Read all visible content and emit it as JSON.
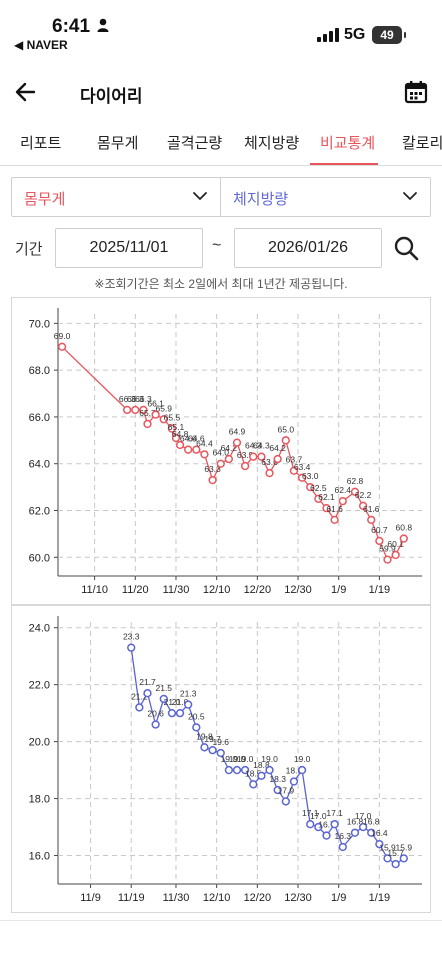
{
  "status_bar": {
    "time": "6:41",
    "back_app": "◀ NAVER",
    "network": "5G",
    "battery": "49"
  },
  "header": {
    "title": "다이어리",
    "back_icon": "arrow-left-icon",
    "calendar_icon": "calendar-icon"
  },
  "tabs": [
    {
      "label": "리포트",
      "active": false
    },
    {
      "label": "몸무게",
      "active": false
    },
    {
      "label": "골격근량",
      "active": false
    },
    {
      "label": "체지방량",
      "active": false
    },
    {
      "label": "비교통계",
      "active": true
    },
    {
      "label": "칼로리",
      "active": false
    }
  ],
  "selectors": {
    "left": "몸무게",
    "right": "체지방량"
  },
  "period": {
    "label": "기간",
    "from": "2025/11/01",
    "separator": "~",
    "to": "2026/01/26",
    "search_icon": "search-icon"
  },
  "notice": "※조회기간은 최소 2일에서 최대 1년간 제공됩니다.",
  "colors": {
    "accent": "#e8555c",
    "weight": "#e8555c",
    "fat": "#5a64d2"
  },
  "chart_data": [
    {
      "type": "line",
      "series": [
        {
          "name": "몸무게",
          "color": "#e8555c"
        }
      ],
      "ylim": [
        59.2,
        70.4
      ],
      "yticks": [
        "70.0",
        "68.0",
        "66.0",
        "64.0",
        "62.0",
        "60.0"
      ],
      "xtick_labels": [
        "11/10",
        "11/20",
        "11/30",
        "12/10",
        "12/20",
        "12/30",
        "1/9",
        "1/19"
      ],
      "grid": true,
      "points": [
        {
          "x": "2025-11-02",
          "y": 69.0,
          "label": "69.0"
        },
        {
          "x": "2025-11-18",
          "y": 66.3,
          "label": "66.3"
        },
        {
          "x": "2025-11-20",
          "y": 66.3,
          "label": "66.3"
        },
        {
          "x": "2025-11-22",
          "y": 66.3,
          "label": "66.3"
        },
        {
          "x": "2025-11-23",
          "y": 65.7,
          "label": "65.7"
        },
        {
          "x": "2025-11-25",
          "y": 66.1,
          "label": "66.1"
        },
        {
          "x": "2025-11-27",
          "y": 65.9,
          "label": "65.9"
        },
        {
          "x": "2025-11-29",
          "y": 65.5,
          "label": "65.5"
        },
        {
          "x": "2025-11-30",
          "y": 65.1,
          "label": "65.1"
        },
        {
          "x": "2025-12-01",
          "y": 64.8,
          "label": "64.8"
        },
        {
          "x": "2025-12-03",
          "y": 64.6,
          "label": "64.6"
        },
        {
          "x": "2025-12-05",
          "y": 64.6,
          "label": "64.6"
        },
        {
          "x": "2025-12-07",
          "y": 64.4,
          "label": "64.4"
        },
        {
          "x": "2025-12-09",
          "y": 63.3,
          "label": "63.3"
        },
        {
          "x": "2025-12-11",
          "y": 64.0,
          "label": "64.0"
        },
        {
          "x": "2025-12-13",
          "y": 64.2,
          "label": "64.2"
        },
        {
          "x": "2025-12-15",
          "y": 64.9,
          "label": "64.9"
        },
        {
          "x": "2025-12-17",
          "y": 63.9,
          "label": "63.9"
        },
        {
          "x": "2025-12-19",
          "y": 64.3,
          "label": "64.3"
        },
        {
          "x": "2025-12-21",
          "y": 64.3,
          "label": "64.3"
        },
        {
          "x": "2025-12-23",
          "y": 63.6,
          "label": "63.6"
        },
        {
          "x": "2025-12-25",
          "y": 64.2,
          "label": "64.2"
        },
        {
          "x": "2025-12-27",
          "y": 65.0,
          "label": "65.0"
        },
        {
          "x": "2025-12-29",
          "y": 63.7,
          "label": "63.7"
        },
        {
          "x": "2025-12-31",
          "y": 63.4,
          "label": "63.4"
        },
        {
          "x": "2026-01-02",
          "y": 63.0,
          "label": "63.0"
        },
        {
          "x": "2026-01-04",
          "y": 62.5,
          "label": "62.5"
        },
        {
          "x": "2026-01-06",
          "y": 62.1,
          "label": "62.1"
        },
        {
          "x": "2026-01-08",
          "y": 61.6,
          "label": "61.6"
        },
        {
          "x": "2026-01-10",
          "y": 62.4,
          "label": "62.4"
        },
        {
          "x": "2026-01-13",
          "y": 62.8,
          "label": "62.8"
        },
        {
          "x": "2026-01-15",
          "y": 62.2,
          "label": "62.2"
        },
        {
          "x": "2026-01-17",
          "y": 61.6,
          "label": "61.6"
        },
        {
          "x": "2026-01-19",
          "y": 60.7,
          "label": "60.7"
        },
        {
          "x": "2026-01-21",
          "y": 59.9,
          "label": "59.9"
        },
        {
          "x": "2026-01-23",
          "y": 60.1,
          "label": "60.1"
        },
        {
          "x": "2026-01-25",
          "y": 60.8,
          "label": "60.8"
        }
      ]
    },
    {
      "type": "line",
      "series": [
        {
          "name": "체지방량",
          "color": "#5a64d2"
        }
      ],
      "ylim": [
        15.0,
        24.2
      ],
      "yticks": [
        "24.0",
        "22.0",
        "20.0",
        "18.0",
        "16.0"
      ],
      "xtick_labels": [
        "11/9",
        "11/19",
        "11/30",
        "12/10",
        "12/20",
        "12/30",
        "1/9",
        "1/19"
      ],
      "grid": true,
      "points": [
        {
          "x": "2025-11-19",
          "y": 23.3,
          "label": "23.3"
        },
        {
          "x": "2025-11-21",
          "y": 21.2,
          "label": "21.2"
        },
        {
          "x": "2025-11-23",
          "y": 21.7,
          "label": "21.7"
        },
        {
          "x": "2025-11-25",
          "y": 20.6,
          "label": "20.6"
        },
        {
          "x": "2025-11-27",
          "y": 21.5,
          "label": "21.5"
        },
        {
          "x": "2025-11-29",
          "y": 21.0,
          "label": "21.0"
        },
        {
          "x": "2025-12-01",
          "y": 21.0,
          "label": "21.0"
        },
        {
          "x": "2025-12-03",
          "y": 21.3,
          "label": "21.3"
        },
        {
          "x": "2025-12-05",
          "y": 20.5,
          "label": "20.5"
        },
        {
          "x": "2025-12-07",
          "y": 19.8,
          "label": "19.8"
        },
        {
          "x": "2025-12-09",
          "y": 19.7,
          "label": "19.7"
        },
        {
          "x": "2025-12-11",
          "y": 19.6,
          "label": "19.6"
        },
        {
          "x": "2025-12-13",
          "y": 19.0,
          "label": "19.0"
        },
        {
          "x": "2025-12-15",
          "y": 19.0,
          "label": "19.0"
        },
        {
          "x": "2025-12-17",
          "y": 19.0,
          "label": "19.0"
        },
        {
          "x": "2025-12-19",
          "y": 18.5,
          "label": "18.5"
        },
        {
          "x": "2025-12-21",
          "y": 18.8,
          "label": "18.8"
        },
        {
          "x": "2025-12-23",
          "y": 19.0,
          "label": "19.0"
        },
        {
          "x": "2025-12-25",
          "y": 18.3,
          "label": "18.3"
        },
        {
          "x": "2025-12-27",
          "y": 17.9,
          "label": "17.9"
        },
        {
          "x": "2025-12-29",
          "y": 18.6,
          "label": "18.6"
        },
        {
          "x": "2025-12-31",
          "y": 19.0,
          "label": "19.0"
        },
        {
          "x": "2026-01-02",
          "y": 17.1,
          "label": "17.1"
        },
        {
          "x": "2026-01-04",
          "y": 17.0,
          "label": "17.0"
        },
        {
          "x": "2026-01-06",
          "y": 16.7,
          "label": "16.7"
        },
        {
          "x": "2026-01-08",
          "y": 17.1,
          "label": "17.1"
        },
        {
          "x": "2026-01-10",
          "y": 16.3,
          "label": "16.3"
        },
        {
          "x": "2026-01-13",
          "y": 16.8,
          "label": "16.8"
        },
        {
          "x": "2026-01-15",
          "y": 17.0,
          "label": "17.0"
        },
        {
          "x": "2026-01-17",
          "y": 16.8,
          "label": "16.8"
        },
        {
          "x": "2026-01-19",
          "y": 16.4,
          "label": "16.4"
        },
        {
          "x": "2026-01-21",
          "y": 15.9,
          "label": "15.9"
        },
        {
          "x": "2026-01-23",
          "y": 15.7,
          "label": "15.7"
        },
        {
          "x": "2026-01-25",
          "y": 15.9,
          "label": "15.9"
        }
      ]
    }
  ]
}
